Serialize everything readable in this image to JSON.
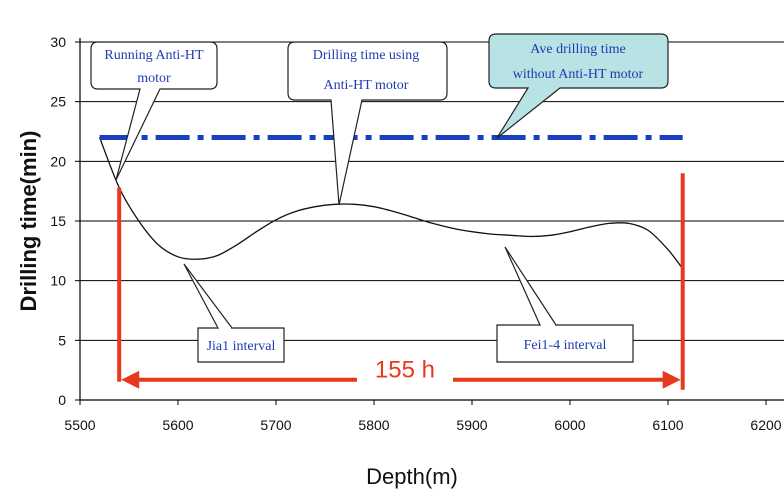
{
  "chart_data": {
    "type": "line",
    "title": "",
    "xlabel": "Depth(m)",
    "ylabel": "Drilling time(min)",
    "xlim": [
      5500,
      6200
    ],
    "ylim": [
      0,
      30
    ],
    "x_ticks": [
      "5500",
      "5600",
      "5700",
      "5800",
      "5900",
      "6000",
      "6100",
      "6200"
    ],
    "y_ticks": [
      "0",
      "5",
      "10",
      "15",
      "20",
      "25",
      "30"
    ],
    "grid": true,
    "series": [
      {
        "values_x": [
          5520,
          5540,
          5560,
          5580,
          5600,
          5620,
          5640,
          5660,
          5680,
          5700,
          5720,
          5740,
          5760,
          5780,
          5800,
          5820,
          5840,
          5860,
          5880,
          5900,
          5920,
          5940,
          5960,
          5980,
          6000,
          6020,
          6040,
          6060,
          6080,
          6100,
          6115
        ],
        "values_y": [
          22,
          17.8,
          15,
          13,
          12,
          11.8,
          12.1,
          13,
          14.1,
          15.1,
          15.8,
          16.2,
          16.4,
          16.4,
          16.2,
          15.8,
          15.3,
          14.8,
          14.4,
          14.1,
          13.9,
          13.8,
          13.7,
          13.8,
          14.1,
          14.5,
          14.8,
          14.8,
          14.2,
          12.6,
          11
        ]
      }
    ],
    "reference_line": {
      "y": 22,
      "x_start": 5520,
      "x_end": 6115,
      "color": "#1a3fbf"
    },
    "interval": {
      "x_start": 5540,
      "x_end": 6115,
      "y": 1.7,
      "label": "155 h",
      "color": "#e8391d"
    },
    "annotations": [
      {
        "lines": [
          "Running Anti-HT",
          "motor"
        ]
      },
      {
        "lines": [
          "Drilling time using",
          "Anti-HT motor"
        ]
      },
      {
        "lines": [
          "Ave  drilling time",
          "without Anti-HT motor"
        ]
      },
      {
        "lines": [
          "Jia1 interval"
        ]
      },
      {
        "lines": [
          "Fei1-4 interval"
        ]
      }
    ]
  }
}
